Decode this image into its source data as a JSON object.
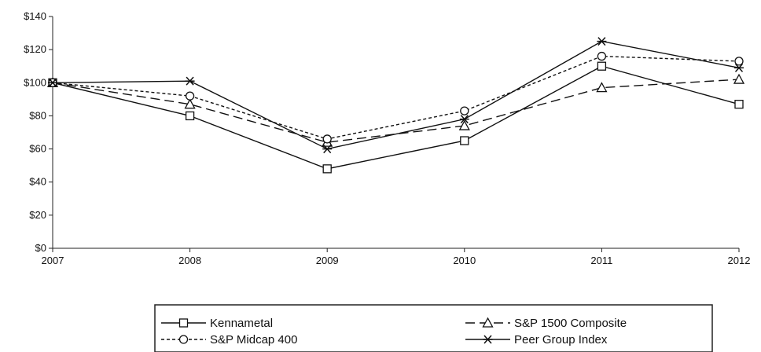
{
  "chart_data": {
    "type": "line",
    "x": [
      "2007",
      "2008",
      "2009",
      "2010",
      "2011",
      "2012"
    ],
    "y_ticks": [
      "$0",
      "$20",
      "$40",
      "$60",
      "$80",
      "$100",
      "$120",
      "$140"
    ],
    "ylim": [
      0,
      140
    ],
    "grid": false,
    "legend_placement": "bottom",
    "series": [
      {
        "name": "Kennametal",
        "marker": "square",
        "dash": "solid",
        "values": [
          100,
          80,
          48,
          65,
          110,
          87
        ]
      },
      {
        "name": "S&P 1500 Composite",
        "marker": "triangle",
        "dash": "long-dash",
        "values": [
          100,
          87,
          64,
          74,
          97,
          102
        ]
      },
      {
        "name": "S&P Midcap 400",
        "marker": "circle",
        "dash": "short-dash",
        "values": [
          100,
          92,
          66,
          83,
          116,
          113
        ]
      },
      {
        "name": "Peer Group Index",
        "marker": "star",
        "dash": "solid",
        "values": [
          100,
          101,
          60,
          78,
          125,
          109
        ]
      }
    ]
  }
}
